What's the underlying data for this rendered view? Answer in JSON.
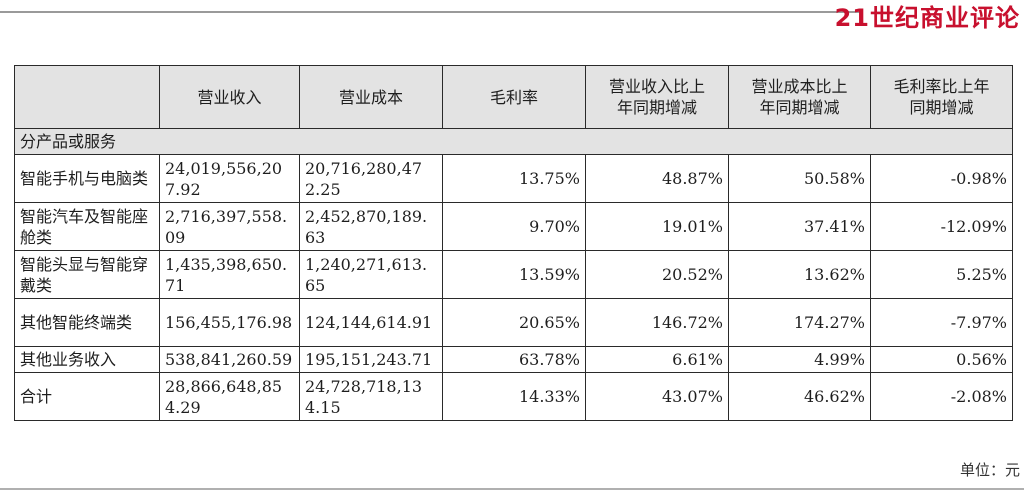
{
  "brand": "21世纪商业评论",
  "unit_note": "单位：元",
  "table": {
    "headers": [
      "",
      "营业收入",
      "营业成本",
      "毛利率",
      "营业收入比上年同期增减",
      "营业成本比上年同期增减",
      "毛利率比上年同期增减"
    ],
    "section_label": "分产品或服务",
    "rows": [
      [
        "智能手机与电脑类",
        "24,019,556,207.92",
        "20,716,280,472.25",
        "13.75%",
        "48.87%",
        "50.58%",
        "-0.98%"
      ],
      [
        "智能汽车及智能座舱类",
        "2,716,397,558.09",
        "2,452,870,189.63",
        "9.70%",
        "19.01%",
        "37.41%",
        "-12.09%"
      ],
      [
        "智能头显与智能穿戴类",
        "1,435,398,650.71",
        "1,240,271,613.65",
        "13.59%",
        "20.52%",
        "13.62%",
        "5.25%"
      ],
      [
        "其他智能终端类",
        "156,455,176.98",
        "124,144,614.91",
        "20.65%",
        "146.72%",
        "174.27%",
        "-7.97%"
      ],
      [
        "其他业务收入",
        "538,841,260.59",
        "195,151,243.71",
        "63.78%",
        "6.61%",
        "4.99%",
        "0.56%"
      ],
      [
        "合计",
        "28,866,648,854.29",
        "24,728,718,134.15",
        "14.33%",
        "43.07%",
        "46.62%",
        "-2.08%"
      ]
    ]
  }
}
